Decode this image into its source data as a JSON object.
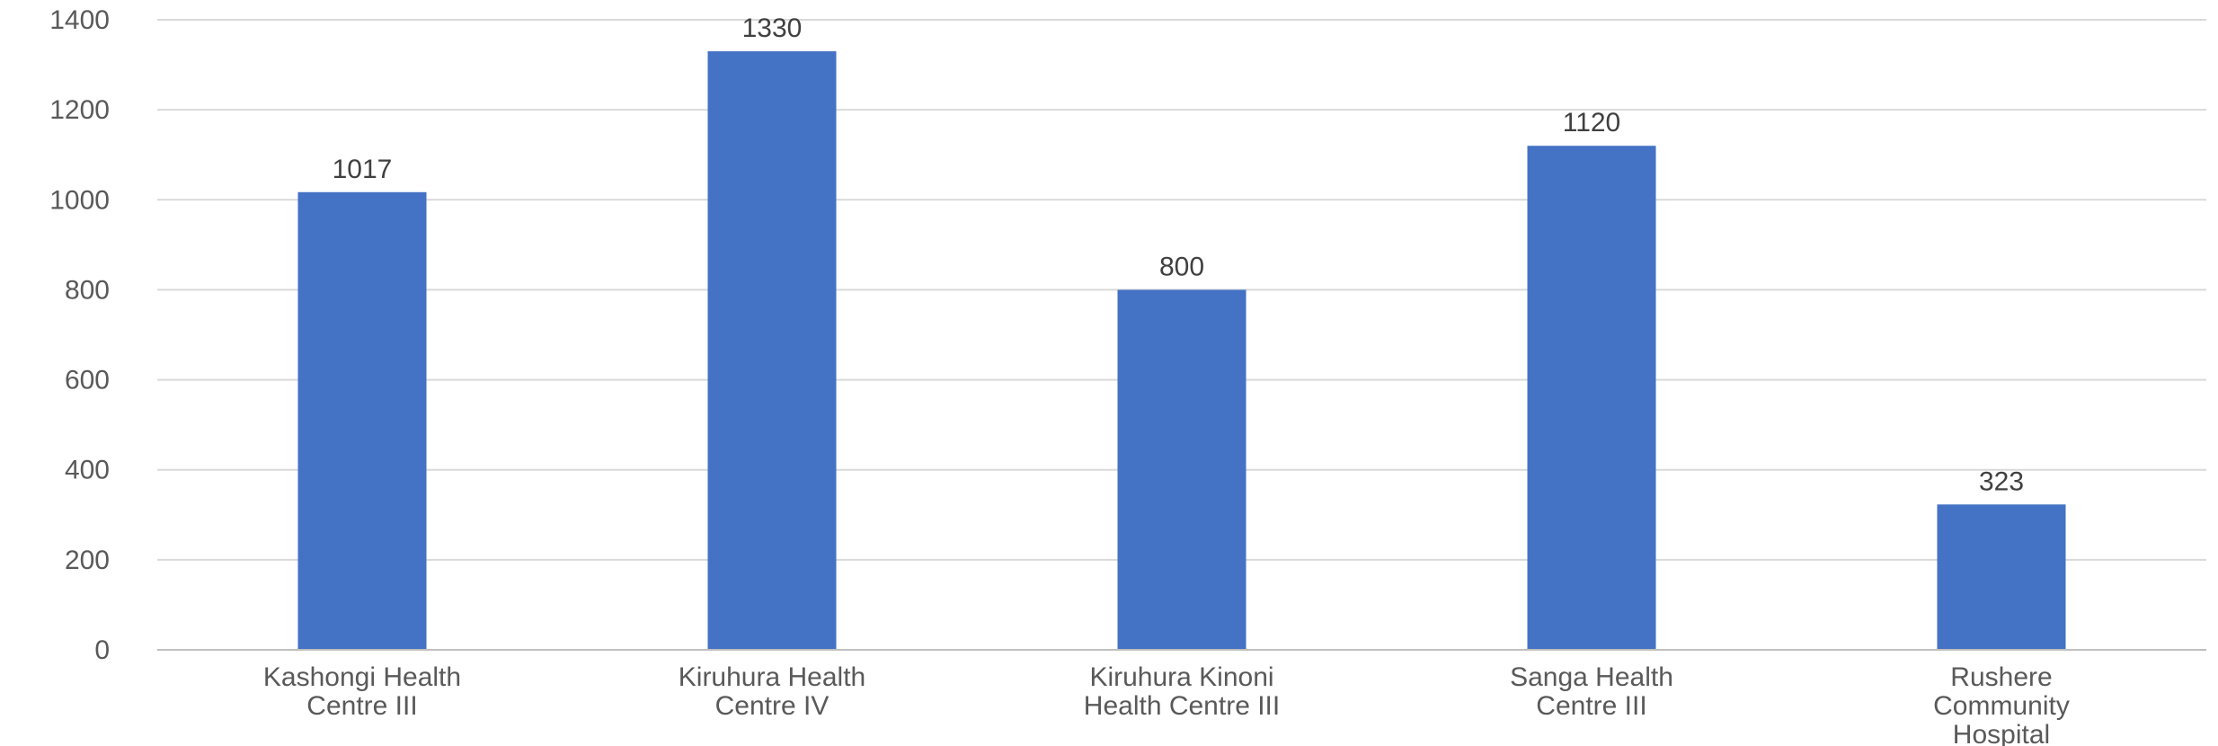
{
  "chart_data": {
    "type": "bar",
    "title": "",
    "xlabel": "",
    "ylabel": "",
    "categories": [
      [
        "Kashongi Health",
        "Centre III"
      ],
      [
        "Kiruhura Health",
        "Centre IV"
      ],
      [
        "Kiruhura Kinoni",
        "Health Centre III"
      ],
      [
        "Sanga Health",
        "Centre III"
      ],
      [
        "Rushere",
        "Community",
        "Hospital"
      ]
    ],
    "values": [
      1017,
      1330,
      800,
      1120,
      323
    ],
    "ylim": [
      0,
      1400
    ],
    "yticks": [
      0,
      200,
      400,
      600,
      800,
      1000,
      1200,
      1400
    ],
    "grid": true,
    "legend": "none",
    "data_labels": true,
    "colors": {
      "bar": "#4472C4",
      "grid": "#D9D9D9",
      "axis": "#BFBFBF"
    }
  }
}
